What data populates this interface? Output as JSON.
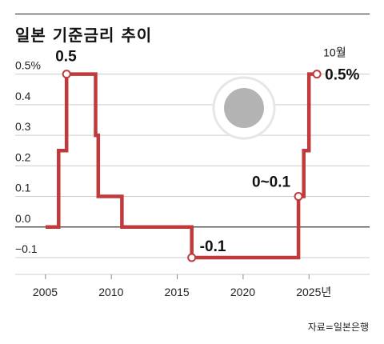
{
  "title": "일본 기준금리 추이",
  "source": "자료=일본은행",
  "colors": {
    "line": "#c0393b",
    "grid": "#cccccc",
    "zero_axis": "#333333",
    "text": "#222222",
    "circle_fill": "#b3b3b3",
    "circle_ring": "#e6e6e6"
  },
  "decoration": {
    "icon": "sun-circle-icon"
  },
  "chart_data": {
    "type": "line",
    "title": "일본 기준금리 추이",
    "xlabel": "",
    "ylabel": "",
    "step": true,
    "y_ticks": [
      {
        "value": 0.5,
        "label": "0.5%"
      },
      {
        "value": 0.4,
        "label": "0.4"
      },
      {
        "value": 0.3,
        "label": "0.3"
      },
      {
        "value": 0.2,
        "label": "0.2"
      },
      {
        "value": 0.1,
        "label": "0.1"
      },
      {
        "value": 0.0,
        "label": "0.0"
      },
      {
        "value": -0.1,
        "label": "−0.1"
      }
    ],
    "x_ticks": [
      {
        "value": 2005,
        "label": "2005"
      },
      {
        "value": 2010,
        "label": "2010"
      },
      {
        "value": 2015,
        "label": "2015"
      },
      {
        "value": 2020,
        "label": "2020"
      },
      {
        "value": 2025,
        "label": "2025년"
      }
    ],
    "xlim": [
      2002.7,
      2029.6
    ],
    "ylim": [
      -0.155,
      0.52
    ],
    "grid": true,
    "series": [
      {
        "points": [
          [
            2005.0,
            0.0
          ],
          [
            2006.0,
            0.0
          ],
          [
            2006.0,
            0.25
          ],
          [
            2006.6,
            0.25
          ],
          [
            2006.6,
            0.5
          ],
          [
            2008.8,
            0.5
          ],
          [
            2008.8,
            0.3
          ],
          [
            2009.0,
            0.3
          ],
          [
            2009.0,
            0.1
          ],
          [
            2010.8,
            0.1
          ],
          [
            2010.8,
            0.0
          ],
          [
            2016.1,
            0.0
          ],
          [
            2016.1,
            -0.1
          ],
          [
            2024.2,
            -0.1
          ],
          [
            2024.2,
            0.1
          ],
          [
            2024.6,
            0.1
          ],
          [
            2024.6,
            0.25
          ],
          [
            2025.0,
            0.25
          ],
          [
            2025.0,
            0.5
          ],
          [
            2025.6,
            0.5
          ]
        ]
      }
    ],
    "markers": [
      {
        "x": 2006.6,
        "y": 0.5
      },
      {
        "x": 2016.1,
        "y": -0.1
      },
      {
        "x": 2024.2,
        "y": 0.1
      },
      {
        "x": 2025.6,
        "y": 0.5
      }
    ],
    "annotations": [
      {
        "text": "0.5",
        "x": 2006.6,
        "y": 0.5,
        "anchor": "above",
        "bold": true
      },
      {
        "text": "-0.1",
        "x": 2016.1,
        "y": -0.1,
        "anchor": "above-right",
        "bold": true
      },
      {
        "text": "0~0.1",
        "x": 2024.2,
        "y": 0.1,
        "anchor": "above-left",
        "bold": true
      },
      {
        "text": "0.5%",
        "x": 2025.6,
        "y": 0.5,
        "anchor": "right",
        "bold": true
      },
      {
        "text": "10월",
        "x": 2025.6,
        "y": 0.5,
        "anchor": "above",
        "bold": false
      }
    ]
  }
}
